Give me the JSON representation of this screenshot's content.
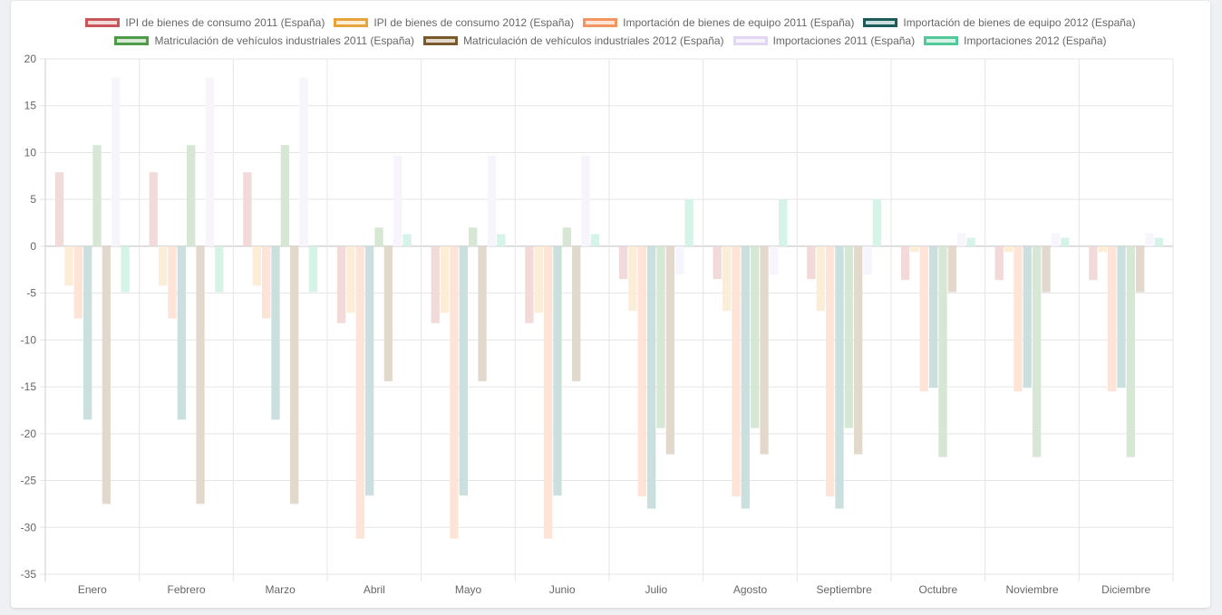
{
  "chart_data": {
    "type": "bar",
    "categories": [
      "Enero",
      "Febrero",
      "Marzo",
      "Abril",
      "Mayo",
      "Junio",
      "Julio",
      "Agosto",
      "Septiembre",
      "Octubre",
      "Noviembre",
      "Diciembre"
    ],
    "ylim": [
      -35,
      20
    ],
    "yticks": [
      20,
      15,
      10,
      5,
      0,
      -5,
      -10,
      -15,
      -20,
      -25,
      -30,
      -35
    ],
    "grid": true,
    "legend_position": "top",
    "series": [
      {
        "name": "IPI de bienes de consumo 2011 (España)",
        "border": "#c9545a",
        "fill": "#f2d9da",
        "values": [
          7.9,
          7.9,
          7.9,
          -8.2,
          -8.2,
          -8.2,
          -3.5,
          -3.5,
          -3.5,
          -3.6,
          -3.6,
          -3.6
        ]
      },
      {
        "name": "IPI de bienes de consumo 2012 (España)",
        "border": "#e8a33a",
        "fill": "#fcedd7",
        "values": [
          -4.2,
          -4.2,
          -4.2,
          -7.1,
          -7.1,
          -7.1,
          -6.9,
          -6.9,
          -6.9,
          -0.6,
          -0.6,
          -0.6
        ]
      },
      {
        "name": "Importación de bienes de equipo 2011 (España)",
        "border": "#f29560",
        "fill": "#fde4d7",
        "values": [
          -7.7,
          -7.7,
          -7.7,
          -31.2,
          -31.2,
          -31.2,
          -26.7,
          -26.7,
          -26.7,
          -15.5,
          -15.5,
          -15.5
        ]
      },
      {
        "name": "Importación de bienes de equipo 2012 (España)",
        "border": "#1d5b5a",
        "fill": "#cbdfdf",
        "values": [
          -18.5,
          -18.5,
          -18.5,
          -26.6,
          -26.6,
          -26.6,
          -28.0,
          -28.0,
          -28.0,
          -15.1,
          -15.1,
          -15.1
        ]
      },
      {
        "name": "Matriculación de vehículos industriales 2011 (España)",
        "border": "#4e9b4a",
        "fill": "#d6e8d4",
        "values": [
          10.8,
          10.8,
          10.8,
          2.0,
          2.0,
          2.0,
          -19.4,
          -19.4,
          -19.4,
          -22.5,
          -22.5,
          -22.5
        ]
      },
      {
        "name": "Matriculación de vehículos industriales 2012 (España)",
        "border": "#7a5a2c",
        "fill": "#e2d9cc",
        "values": [
          -27.5,
          -27.5,
          -27.5,
          -14.4,
          -14.4,
          -14.4,
          -22.2,
          -22.2,
          -22.2,
          -4.9,
          -4.9,
          -4.9
        ]
      },
      {
        "name": "Importaciones 2011 (España)",
        "border": "#e2d6f2",
        "fill": "#f7f4fc",
        "values": [
          18.0,
          18.0,
          18.0,
          9.7,
          9.7,
          9.7,
          -3.0,
          -3.0,
          -3.0,
          1.4,
          1.4,
          1.4
        ]
      },
      {
        "name": "Importaciones 2012 (España)",
        "border": "#53c99a",
        "fill": "#d6f3e8",
        "values": [
          -4.9,
          -4.9,
          -4.9,
          1.3,
          1.3,
          1.3,
          5.0,
          5.0,
          5.0,
          0.9,
          0.9,
          0.9
        ]
      }
    ]
  }
}
